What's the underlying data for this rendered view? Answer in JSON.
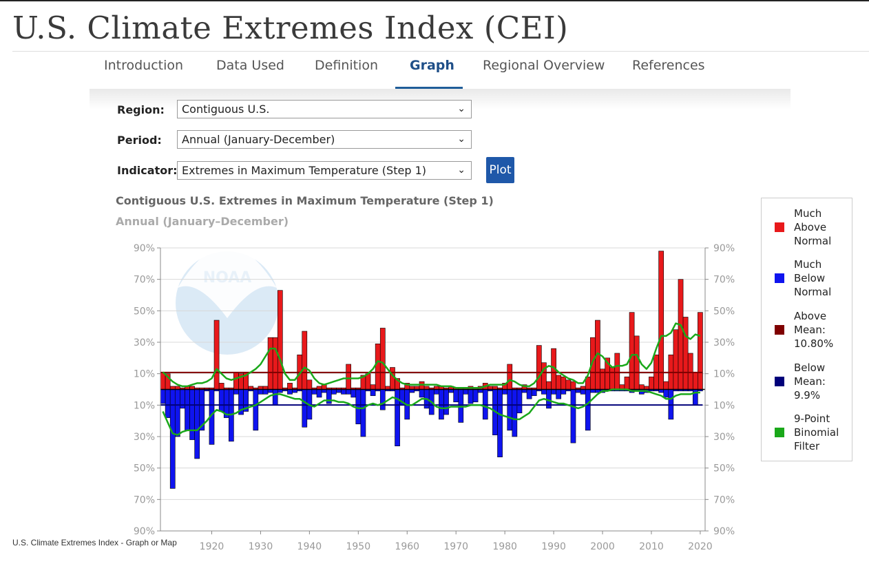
{
  "page": {
    "title": "U.S. Climate Extremes Index (CEI)",
    "caption": "U.S. Climate Extremes Index - Graph or Map"
  },
  "tabs": [
    {
      "label": "Introduction",
      "active": false
    },
    {
      "label": "Data Used",
      "active": false
    },
    {
      "label": "Definition",
      "active": false
    },
    {
      "label": "Graph",
      "active": true
    },
    {
      "label": "Regional Overview",
      "active": false
    },
    {
      "label": "References",
      "active": false
    }
  ],
  "form": {
    "region_label": "Region:",
    "region_value": "Contiguous U.S.",
    "period_label": "Period:",
    "period_value": "Annual (January-December)",
    "indicator_label": "Indicator:",
    "indicator_value": "Extremes in Maximum Temperature (Step 1)",
    "plot_label": "Plot"
  },
  "chart_data": {
    "type": "bar",
    "title": "Contiguous U.S. Extremes in Maximum Temperature (Step 1)",
    "subtitle": "Annual (January–December)",
    "watermark": "NOAA",
    "x_ticks": [
      "1920",
      "1930",
      "1940",
      "1950",
      "1960",
      "1970",
      "1980",
      "1990",
      "2000",
      "2010",
      "2020"
    ],
    "y_ticks": [
      "90%",
      "70%",
      "50%",
      "30%",
      "10%",
      "10%",
      "30%",
      "50%",
      "70%",
      "90%"
    ],
    "ylim": [
      -90,
      90
    ],
    "grid": true,
    "legend_position": "right",
    "colors": {
      "above": "#e8191b",
      "below": "#0f14ef",
      "above_mean": "#7f0000",
      "below_mean": "#00007a",
      "filter": "#1aa81a"
    },
    "years_start": 1910,
    "above": [
      11,
      10,
      2,
      2,
      1,
      2,
      2,
      1,
      1,
      1,
      1,
      44,
      4,
      1,
      1,
      11,
      10,
      11,
      2,
      1,
      2,
      2,
      33,
      33,
      63,
      1,
      4,
      1,
      22,
      37,
      6,
      1,
      2,
      3,
      1,
      1,
      1,
      1,
      16,
      1,
      1,
      9,
      10,
      3,
      29,
      39,
      2,
      14,
      7,
      1,
      4,
      2,
      2,
      5,
      2,
      1,
      2,
      2,
      1,
      2,
      1,
      1,
      1,
      2,
      1,
      2,
      4,
      2,
      2,
      1,
      4,
      16,
      1,
      1,
      3,
      1,
      1,
      28,
      17,
      5,
      26,
      9,
      8,
      6,
      5,
      1,
      2,
      8,
      33,
      44,
      13,
      20,
      14,
      23,
      3,
      8,
      49,
      34,
      3,
      2,
      8,
      22,
      88,
      5,
      22,
      38,
      70,
      46,
      23,
      11,
      49
    ],
    "below": [
      9,
      18,
      63,
      30,
      12,
      26,
      32,
      44,
      26,
      1,
      35,
      1,
      14,
      18,
      33,
      3,
      16,
      14,
      1,
      26,
      3,
      3,
      2,
      10,
      2,
      1,
      3,
      2,
      1,
      24,
      19,
      3,
      5,
      2,
      9,
      3,
      2,
      3,
      3,
      5,
      22,
      30,
      1,
      4,
      1,
      13,
      1,
      1,
      36,
      10,
      19,
      2,
      1,
      5,
      12,
      16,
      3,
      19,
      16,
      2,
      8,
      21,
      3,
      9,
      8,
      2,
      19,
      1,
      29,
      43,
      3,
      26,
      30,
      15,
      2,
      6,
      4,
      1,
      3,
      12,
      3,
      6,
      3,
      1,
      34,
      2,
      3,
      26,
      2,
      2,
      2,
      1,
      1,
      1,
      1,
      1,
      2,
      1,
      3,
      2,
      1,
      1,
      2,
      5,
      19,
      1,
      1,
      1,
      1,
      10,
      1
    ],
    "above_filter": [
      11,
      8,
      5,
      3,
      2,
      2,
      3,
      4,
      4,
      5,
      7,
      13,
      10,
      7,
      6,
      7,
      8,
      9,
      11,
      13,
      16,
      21,
      26,
      26,
      19,
      10,
      6,
      6,
      10,
      14,
      12,
      7,
      4,
      3,
      4,
      5,
      6,
      7,
      7,
      7,
      7,
      8,
      10,
      13,
      18,
      17,
      13,
      9,
      6,
      4,
      3,
      3,
      3,
      3,
      3,
      3,
      3,
      2,
      2,
      2,
      1,
      1,
      1,
      1,
      1,
      1,
      2,
      3,
      3,
      3,
      3,
      6,
      5,
      3,
      2,
      2,
      4,
      8,
      13,
      15,
      14,
      11,
      9,
      7,
      6,
      4,
      4,
      9,
      18,
      23,
      21,
      17,
      14,
      15,
      15,
      16,
      22,
      22,
      16,
      13,
      17,
      26,
      34,
      34,
      36,
      42,
      41,
      34,
      32,
      35,
      34
    ],
    "below_filter": [
      -14,
      -21,
      -28,
      -29,
      -27,
      -26,
      -26,
      -26,
      -23,
      -20,
      -16,
      -13,
      -14,
      -16,
      -16,
      -15,
      -13,
      -12,
      -11,
      -10,
      -8,
      -6,
      -4,
      -3,
      -3,
      -4,
      -5,
      -6,
      -6,
      -8,
      -10,
      -11,
      -9,
      -7,
      -7,
      -7,
      -8,
      -8,
      -9,
      -11,
      -12,
      -12,
      -10,
      -9,
      -10,
      -9,
      -7,
      -5,
      -6,
      -8,
      -10,
      -10,
      -8,
      -6,
      -6,
      -8,
      -11,
      -12,
      -12,
      -11,
      -11,
      -11,
      -11,
      -10,
      -10,
      -10,
      -11,
      -12,
      -14,
      -16,
      -17,
      -18,
      -19,
      -19,
      -17,
      -15,
      -11,
      -7,
      -6,
      -7,
      -8,
      -9,
      -9,
      -10,
      -11,
      -12,
      -11,
      -9,
      -6,
      -3,
      -1,
      -1,
      0,
      0,
      0,
      0,
      -1,
      -1,
      -1,
      -1,
      -2,
      -3,
      -4,
      -6,
      -6,
      -4,
      -3,
      -3,
      -3,
      -2,
      -2
    ],
    "above_mean": 10.8,
    "below_mean": 9.9,
    "legend": [
      {
        "label": "Much Above Normal",
        "color": "#e8191b"
      },
      {
        "label": "Much Below Normal",
        "color": "#0f14ef"
      },
      {
        "label": "Above Mean: 10.80%",
        "color": "#7f0000"
      },
      {
        "label": "Below Mean: 9.9%",
        "color": "#00007a"
      },
      {
        "label": "9-Point Binomial Filter",
        "color": "#1aa81a"
      }
    ]
  }
}
